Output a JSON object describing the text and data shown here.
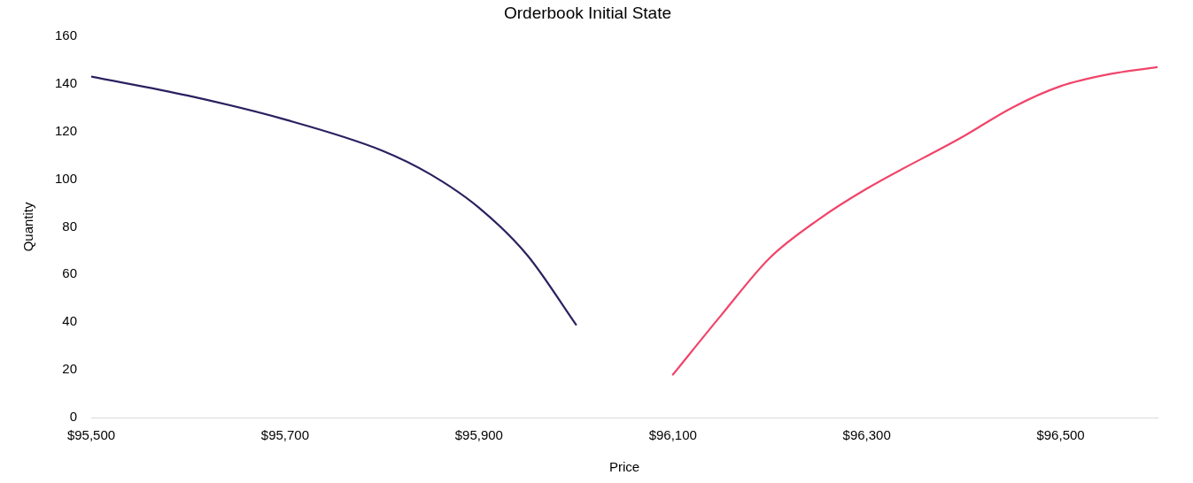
{
  "chart_data": {
    "type": "line",
    "title": "Orderbook Initial State",
    "xlabel": "Price",
    "ylabel": "Quantity",
    "xlim": [
      95500,
      96600
    ],
    "xticks": [
      {
        "value": 95500,
        "label": "$95,500"
      },
      {
        "value": 95700,
        "label": "$95,700"
      },
      {
        "value": 95900,
        "label": "$95,900"
      },
      {
        "value": 96100,
        "label": "$96,100"
      },
      {
        "value": 96300,
        "label": "$96,300"
      },
      {
        "value": 96500,
        "label": "$96,500"
      }
    ],
    "ylim": [
      0,
      160
    ],
    "yticks": [
      0,
      20,
      40,
      60,
      80,
      100,
      120,
      140,
      160
    ],
    "grid": false,
    "legend": false,
    "marker": "none",
    "line_style": "solid",
    "series": [
      {
        "color": "#2a2160",
        "x": [
          95500,
          95600,
          95700,
          95800,
          95850,
          95900,
          95950,
          96000
        ],
        "values": [
          143,
          135,
          125,
          112,
          102,
          88,
          68,
          39
        ]
      },
      {
        "color": "#f0456a",
        "x": [
          96100,
          96150,
          96200,
          96250,
          96300,
          96400,
          96450,
          96500,
          96550,
          96600
        ],
        "values": [
          18,
          43,
          67,
          83,
          96,
          118,
          130,
          139,
          144,
          147
        ]
      }
    ]
  }
}
